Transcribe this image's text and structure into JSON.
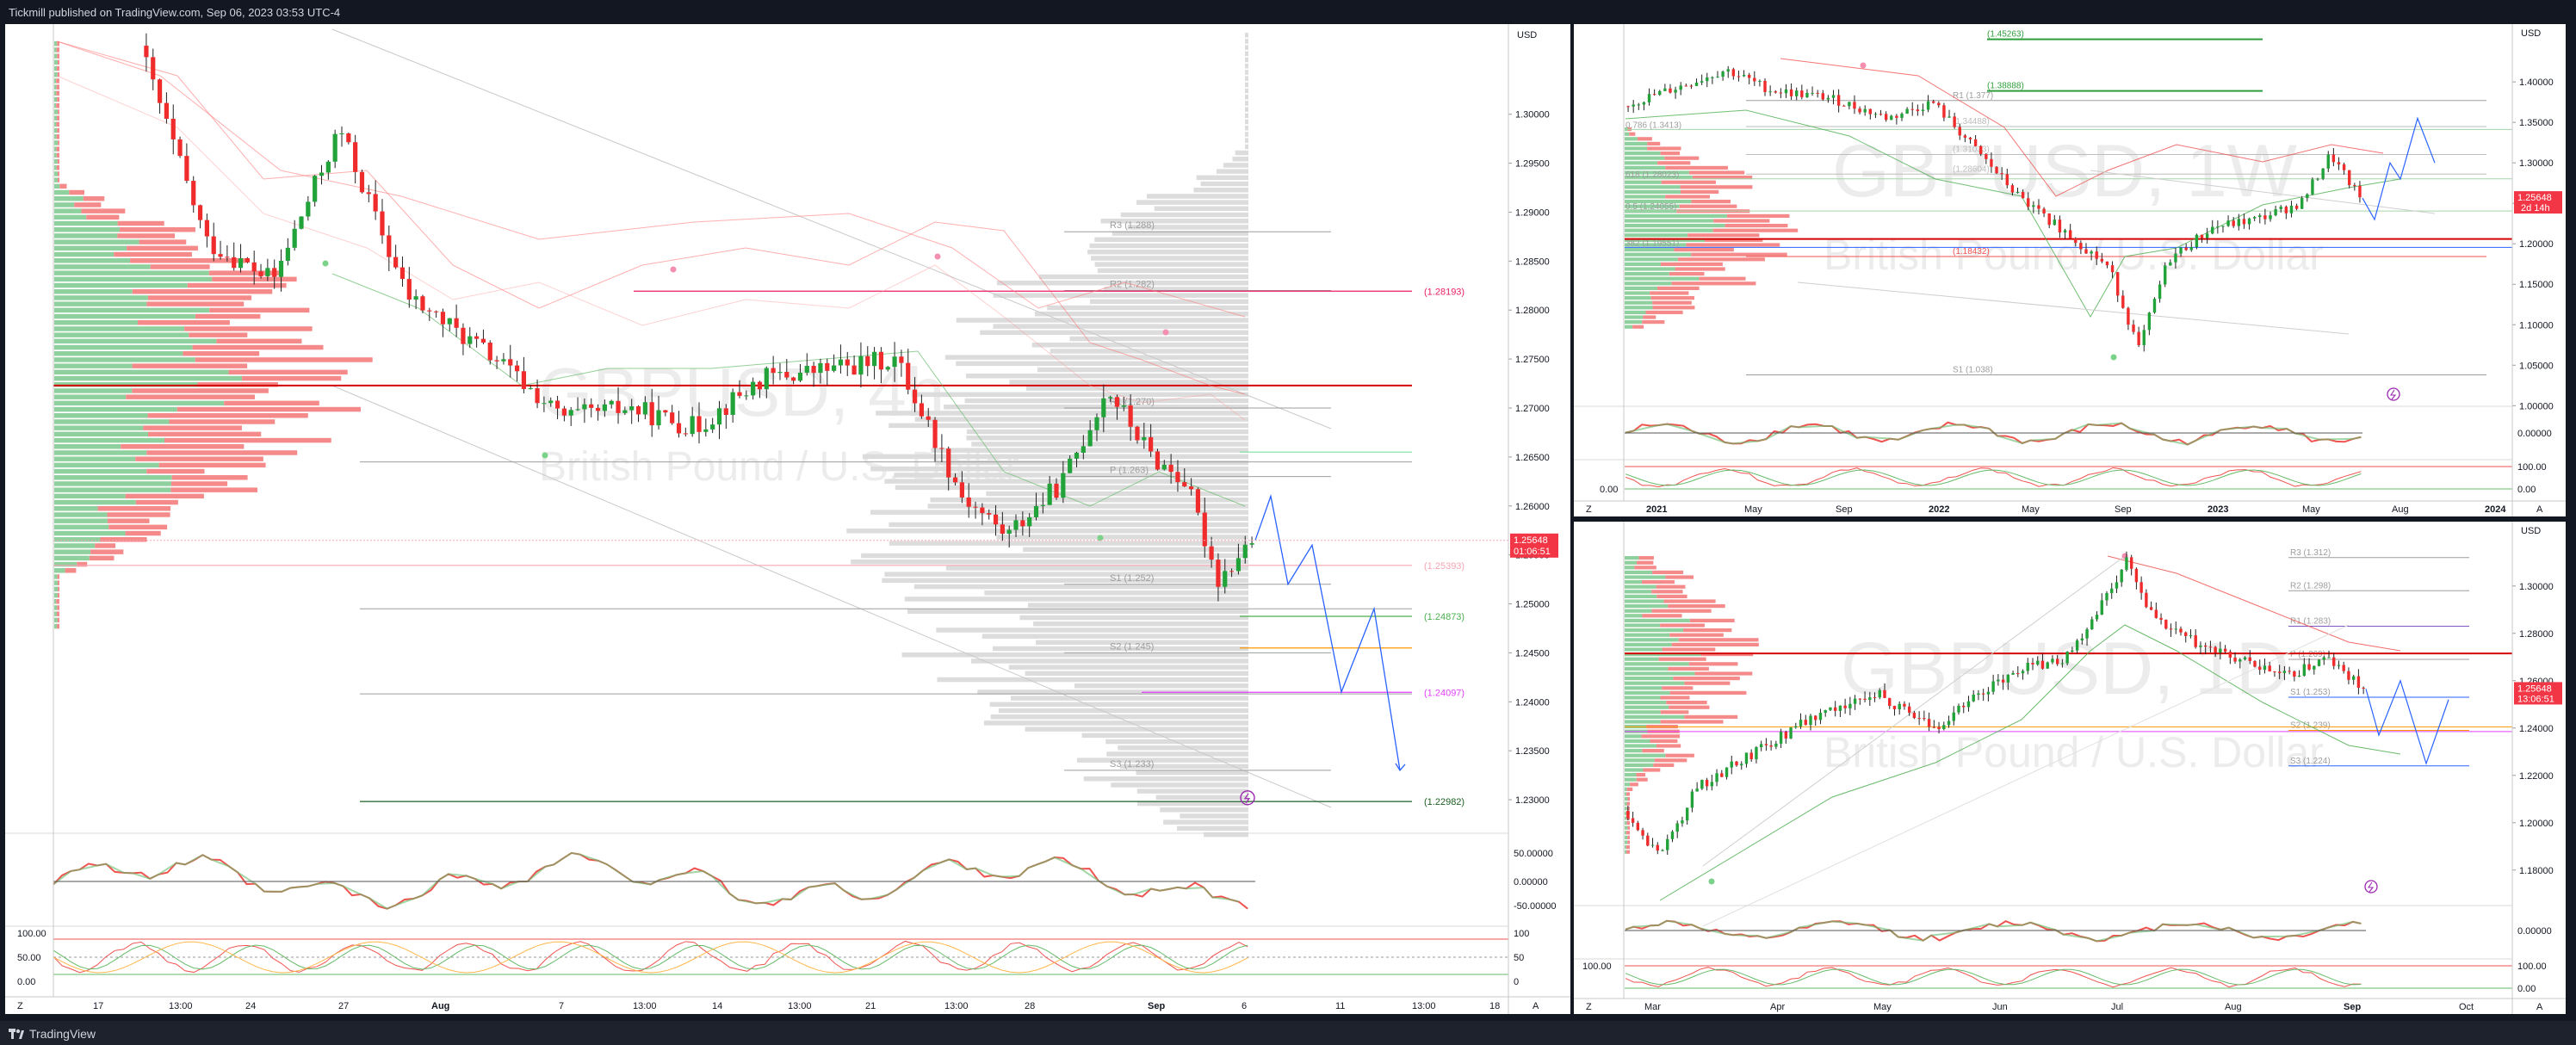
{
  "header": {
    "published_text": "Tickmill published on TradingView.com, Sep 06, 2023 03:53 UTC-4"
  },
  "footer": {
    "brand": "TradingView"
  },
  "colors": {
    "up": "#22a33a",
    "down": "#ef2b2b",
    "bg": "#ffffff",
    "frame": "#131722",
    "price_tag": "#f23645",
    "arrow": "#2962ff"
  },
  "charts": [
    {
      "id": "main",
      "watermark_symbol": "GBPUSD, 4h",
      "watermark_name": "British Pound / U.S. Dollar",
      "currency": "USD",
      "corner_left": "Z",
      "corner_right": "A",
      "price_label": {
        "value": "1.25648",
        "countdown": "01:06:51"
      },
      "ylim": [
        1.2235,
        1.3085
      ],
      "y_ticks": [
        "1.30000",
        "1.29500",
        "1.29000",
        "1.28500",
        "1.28000",
        "1.27500",
        "1.27000",
        "1.26500",
        "1.26000",
        "1.25500",
        "1.25000",
        "1.24500",
        "1.24000",
        "1.23500",
        "1.23000"
      ],
      "x_ticks": [
        "17",
        "13:00",
        "24",
        "27",
        "Aug",
        "7",
        "13:00",
        "14",
        "13:00",
        "21",
        "13:00",
        "28",
        "Sep",
        "6",
        "11",
        "13:00",
        "18"
      ],
      "pivots": [
        {
          "label": "R3 (1.288)",
          "value": 1.288
        },
        {
          "label": "R2 (1.282)",
          "value": 1.282
        },
        {
          "label": "R1 (1.270)",
          "value": 1.27
        },
        {
          "label": "P (1.263)",
          "value": 1.263
        },
        {
          "label": "S1 (1.252)",
          "value": 1.252
        },
        {
          "label": "S2 (1.245)",
          "value": 1.245
        },
        {
          "label": "S3 (1.233)",
          "value": 1.233
        }
      ],
      "levels": [
        {
          "label": "(1.28193)",
          "value": 1.28193,
          "color": "#e91e63"
        },
        {
          "label": "",
          "value": 1.2723,
          "color": "#d50000"
        },
        {
          "label": "(1.25393)",
          "value": 1.25393,
          "color": "#f7a5b4"
        },
        {
          "label": "(1.24873)",
          "value": 1.24873,
          "color": "#4caf50"
        },
        {
          "label": "(1.24097)",
          "value": 1.24097,
          "color": "#e040fb"
        },
        {
          "label": "(1.22982)",
          "value": 1.22982,
          "color": "#1b5e20"
        }
      ],
      "rsi_ticks": [
        "50.00000",
        "0.00000",
        "-50.00000"
      ],
      "stoch_ticks": [
        "100",
        "50",
        "0"
      ],
      "left_ticks": [
        "100.00",
        "50.00",
        "0.00"
      ]
    },
    {
      "id": "weekly",
      "watermark_symbol": "GBPUSD, 1W",
      "watermark_name": "British Pound / U.S. Dollar",
      "currency": "USD",
      "corner_left": "Z",
      "corner_right": "A",
      "price_label": {
        "value": "1.25648",
        "countdown": "2d 14h"
      },
      "ylim": [
        0.995,
        1.465
      ],
      "y_ticks": [
        "1.40000",
        "1.35000",
        "1.30000",
        "1.25000",
        "1.20000",
        "1.15000",
        "1.10000",
        "1.05000",
        "1.00000"
      ],
      "x_ticks": [
        "2021",
        "May",
        "Sep",
        "2022",
        "May",
        "Sep",
        "2023",
        "May",
        "Aug",
        "2024"
      ],
      "levels_text": [
        "(1.45263)",
        "(1.38888)",
        "R1 (1.377)",
        "(1.34488)",
        "(1.31033)",
        "(1.28604)",
        "(1.18432)",
        "S1 (1.038)",
        "0.786 (1.3413)",
        "618 (1.28023)",
        "0.5 (1.24055)",
        "382 (1.19551)"
      ],
      "rsi_ticks": [
        "0.00000"
      ],
      "stoch_ticks": [
        "100.00",
        "0.00"
      ],
      "left_ticks": [
        "0.00"
      ]
    },
    {
      "id": "daily",
      "watermark_symbol": "GBPUSD, 1D",
      "watermark_name": "British Pound / U.S. Dollar",
      "currency": "USD",
      "corner_left": "Z",
      "corner_right": "A",
      "price_label": {
        "value": "1.25648",
        "countdown": "13:06:51"
      },
      "ylim": [
        1.165,
        1.325
      ],
      "y_ticks": [
        "1.30000",
        "1.28000",
        "1.26000",
        "1.24000",
        "1.22000",
        "1.20000",
        "1.18000"
      ],
      "x_ticks": [
        "Mar",
        "Apr",
        "May",
        "Jun",
        "Jul",
        "Aug",
        "Sep",
        "Oct"
      ],
      "pivots_text": [
        "R3 (1.312)",
        "R2 (1.298)",
        "R1 (1.283)",
        "P (1.269)",
        "S1 (1.253)",
        "S2 (1.239)",
        "S3 (1.224)"
      ],
      "rsi_ticks": [
        "0.00000"
      ],
      "stoch_ticks": [
        "100.00",
        "0.00"
      ],
      "left_ticks": [
        "100.00"
      ]
    }
  ]
}
